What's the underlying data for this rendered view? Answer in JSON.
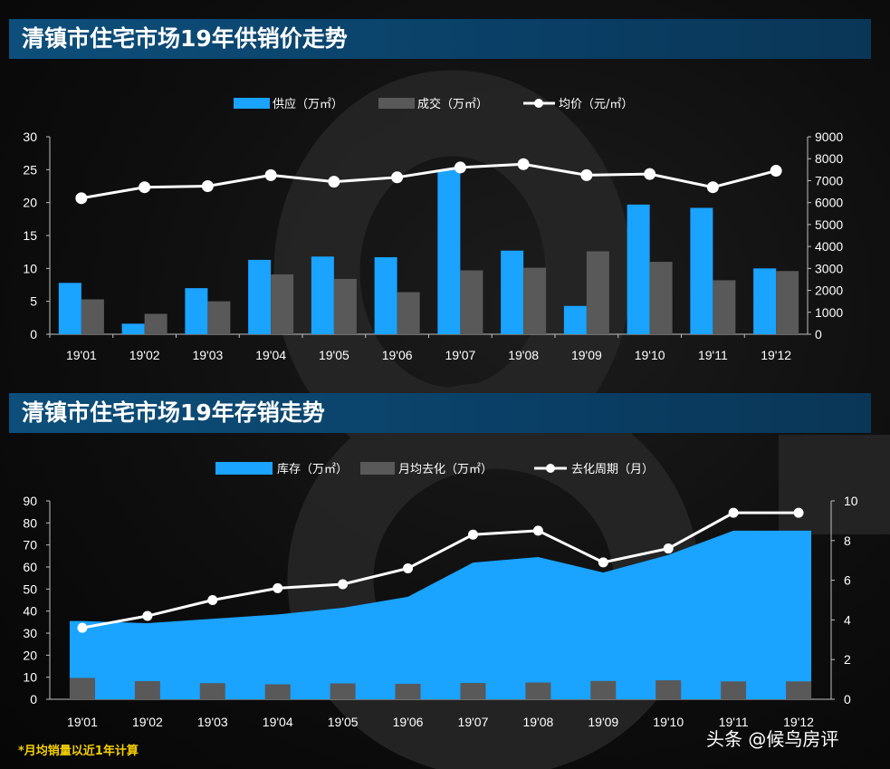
{
  "charts_header": {
    "supply_title": "清镇市住宅市场19年供销价走势",
    "inventory_title": "清镇市住宅市场19年存销走势"
  },
  "footnote": "*月均销量以近1年计算",
  "credit": "头条 @候鸟房评",
  "colors": {
    "supply": "#1aa3ff",
    "deal": "#595959",
    "line": "#ffffff",
    "banner": "#0d4f7a",
    "note": "#f5d000"
  },
  "chart_data": [
    {
      "type": "bar",
      "title": "清镇市住宅市场19年供销价走势",
      "categories": [
        "19'01",
        "19'02",
        "19'03",
        "19'04",
        "19'05",
        "19'06",
        "19'07",
        "19'08",
        "19'09",
        "19'10",
        "19'11",
        "19'12"
      ],
      "series": [
        {
          "name": "供应（万㎡）",
          "kind": "bar",
          "axis": "left",
          "values": [
            7.8,
            1.6,
            7.0,
            11.3,
            11.8,
            11.7,
            25.0,
            12.7,
            4.3,
            19.7,
            19.2,
            10.0
          ]
        },
        {
          "name": "成交（万㎡）",
          "kind": "bar",
          "axis": "left",
          "values": [
            5.3,
            3.1,
            5.0,
            9.1,
            8.4,
            6.4,
            9.7,
            10.1,
            12.6,
            11.0,
            8.2,
            9.6
          ]
        },
        {
          "name": "均价（元/㎡）",
          "kind": "line",
          "axis": "right",
          "values": [
            6200,
            6700,
            6750,
            7250,
            6950,
            7150,
            7600,
            7750,
            7250,
            7300,
            6700,
            7450
          ]
        }
      ],
      "ylim_left": [
        0,
        30
      ],
      "yticks_left": [
        0,
        5,
        10,
        15,
        20,
        25,
        30
      ],
      "ylim_right": [
        0,
        9000
      ],
      "yticks_right": [
        0,
        1000,
        2000,
        3000,
        4000,
        5000,
        6000,
        7000,
        8000,
        9000
      ],
      "legend_position": "top-center",
      "grid": false
    },
    {
      "type": "area",
      "title": "清镇市住宅市场19年存销走势",
      "categories": [
        "19'01",
        "19'02",
        "19'03",
        "19'04",
        "19'05",
        "19'06",
        "19'07",
        "19'08",
        "19'09",
        "19'10",
        "19'11",
        "19'12"
      ],
      "series": [
        {
          "name": "库存（万㎡）",
          "kind": "area",
          "axis": "left",
          "values": [
            35.5,
            34.5,
            36.5,
            38.5,
            41.5,
            46.5,
            62.0,
            64.5,
            57.5,
            65.5,
            76.5,
            76.5
          ]
        },
        {
          "name": "月均去化（万㎡）",
          "kind": "bar",
          "axis": "left",
          "values": [
            9.7,
            8.2,
            7.3,
            6.8,
            7.2,
            7.0,
            7.4,
            7.6,
            8.3,
            8.6,
            8.1,
            8.1
          ]
        },
        {
          "name": "去化周期（月）",
          "kind": "line",
          "axis": "right",
          "values": [
            3.6,
            4.2,
            5.0,
            5.6,
            5.8,
            6.6,
            8.3,
            8.5,
            6.9,
            7.6,
            9.4,
            9.4
          ]
        }
      ],
      "ylim_left": [
        0,
        90
      ],
      "yticks_left": [
        0,
        10,
        20,
        30,
        40,
        50,
        60,
        70,
        80,
        90
      ],
      "ylim_right": [
        0,
        10
      ],
      "yticks_right": [
        0,
        2,
        4,
        6,
        8,
        10
      ],
      "legend_position": "top-center",
      "grid": false
    }
  ]
}
